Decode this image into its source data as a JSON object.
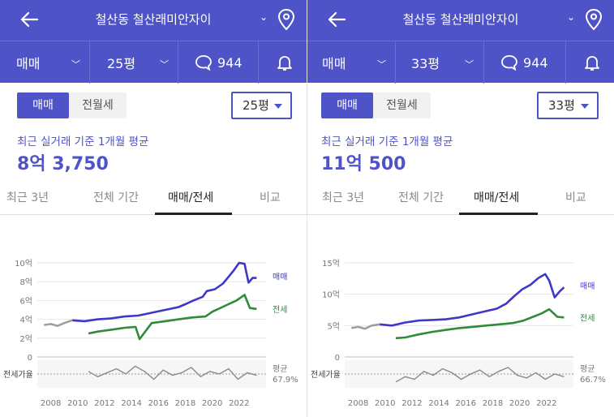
{
  "panels": [
    {
      "title": "철산동 철산래미안자이",
      "deal_type": "매매",
      "area_filter": "25평",
      "comments": "944",
      "tab_sale": "매매",
      "tab_jeonse": "전월세",
      "size_select": "25평",
      "subtitle": "최근 실거래 기준 1개월 평균",
      "price": "8억 3,750",
      "chart_tabs": [
        "최근 3년",
        "전체 기간",
        "매매/전세",
        "비교"
      ],
      "active_tab": 2,
      "chart_data": {
        "type": "line",
        "y_ticks": [
          "10억",
          "8억",
          "6억",
          "4억",
          "2억",
          "0"
        ],
        "ylim": [
          0,
          10
        ],
        "x_ticks": [
          "2008",
          "2010",
          "2012",
          "2014",
          "2016",
          "2018",
          "2020",
          "2022"
        ],
        "series_labels": {
          "sale": "매매",
          "jeonse": "전세"
        },
        "ratio_label": "전세가율",
        "avg_label": "평균",
        "avg_value": "67.9%",
        "series": [
          {
            "name": "매매",
            "color": "#3F37C9",
            "x": [
              2009.6,
              2010.5,
              2011.5,
              2012.5,
              2013.5,
              2014.5,
              2015.5,
              2016.5,
              2017.5,
              2018.0,
              2018.6,
              2019.3,
              2019.6,
              2020.2,
              2020.8,
              2021.2,
              2021.6,
              2022.0,
              2022.4,
              2022.7,
              2023.0,
              2023.3
            ],
            "values": [
              3.9,
              3.8,
              4.0,
              4.1,
              4.3,
              4.4,
              4.7,
              5.0,
              5.3,
              5.6,
              6.0,
              6.4,
              7.0,
              7.2,
              7.8,
              8.5,
              9.2,
              10.0,
              9.9,
              7.9,
              8.4,
              8.4
            ]
          },
          {
            "name": "전세",
            "color": "#2E8B3A",
            "x": [
              2010.8,
              2011.5,
              2012.5,
              2013.5,
              2014.3,
              2014.6,
              2015.5,
              2016.5,
              2017.5,
              2018.5,
              2019.5,
              2020.0,
              2020.6,
              2021.2,
              2021.8,
              2022.4,
              2022.8,
              2023.3
            ],
            "values": [
              2.5,
              2.7,
              2.9,
              3.1,
              3.2,
              1.9,
              3.6,
              3.8,
              4.0,
              4.2,
              4.3,
              4.8,
              5.2,
              5.6,
              6.0,
              6.6,
              5.2,
              5.1
            ]
          },
          {
            "name": "old",
            "color": "#9e9e9e",
            "x": [
              2007.5,
              2008.0,
              2008.5,
              2009.0,
              2009.6
            ],
            "values": [
              3.4,
              3.5,
              3.3,
              3.6,
              3.9
            ]
          }
        ],
        "ratio_series": [
          70,
          66,
          69,
          72,
          68,
          74,
          70,
          64,
          71,
          67,
          69,
          73,
          66,
          70,
          68,
          72,
          64,
          69,
          67
        ]
      }
    },
    {
      "title": "철산동 철산래미안자이",
      "deal_type": "매매",
      "area_filter": "33평",
      "comments": "944",
      "tab_sale": "매매",
      "tab_jeonse": "전월세",
      "size_select": "33평",
      "subtitle": "최근 실거래 기준 1개월 평균",
      "price": "11억 500",
      "chart_tabs": [
        "최근 3년",
        "전체 기간",
        "매매/전세",
        "비교"
      ],
      "active_tab": 2,
      "chart_data": {
        "type": "line",
        "y_ticks": [
          "15억",
          "10억",
          "5억",
          "0"
        ],
        "ylim": [
          0,
          15
        ],
        "x_ticks": [
          "2008",
          "2010",
          "2012",
          "2014",
          "2016",
          "2018",
          "2020",
          "2022"
        ],
        "series_labels": {
          "sale": "매매",
          "jeonse": "전세"
        },
        "ratio_label": "전세가율",
        "avg_label": "평균",
        "avg_value": "66.7%",
        "series": [
          {
            "name": "매매",
            "color": "#3F37C9",
            "x": [
              2009.6,
              2010.5,
              2011.5,
              2012.5,
              2013.5,
              2014.5,
              2015.5,
              2016.5,
              2017.5,
              2018.3,
              2019.0,
              2019.6,
              2020.2,
              2020.8,
              2021.4,
              2021.9,
              2022.2,
              2022.6,
              2023.0,
              2023.3
            ],
            "values": [
              5.2,
              5.0,
              5.5,
              5.8,
              5.9,
              6.0,
              6.3,
              6.8,
              7.3,
              7.7,
              8.5,
              9.7,
              10.8,
              11.5,
              12.6,
              13.2,
              12.2,
              9.5,
              10.5,
              11.1
            ]
          },
          {
            "name": "전세",
            "color": "#2E8B3A",
            "x": [
              2010.8,
              2011.5,
              2012.5,
              2013.5,
              2014.5,
              2015.5,
              2016.5,
              2017.5,
              2018.5,
              2019.5,
              2020.3,
              2021.0,
              2021.6,
              2022.2,
              2022.8,
              2023.3
            ],
            "values": [
              3.0,
              3.1,
              3.6,
              4.0,
              4.3,
              4.6,
              4.8,
              5.0,
              5.2,
              5.4,
              5.8,
              6.4,
              6.9,
              7.6,
              6.4,
              6.3
            ]
          },
          {
            "name": "old",
            "color": "#9e9e9e",
            "x": [
              2007.5,
              2008.0,
              2008.5,
              2009.0,
              2009.6
            ],
            "values": [
              4.6,
              4.8,
              4.5,
              5.0,
              5.2
            ]
          }
        ],
        "ratio_series": [
          62,
          66,
          64,
          70,
          67,
          72,
          69,
          64,
          68,
          71,
          66,
          70,
          73,
          67,
          65,
          69,
          64,
          68,
          66
        ]
      }
    }
  ],
  "colors": {
    "brand": "#4F53C8",
    "sale_line": "#3F37C9",
    "jeonse_line": "#2E8B3A"
  },
  "icons": {
    "back": "arrow-left-icon",
    "location": "map-pin-icon",
    "comment": "speech-bubble-icon",
    "alarm": "bell-icon"
  }
}
